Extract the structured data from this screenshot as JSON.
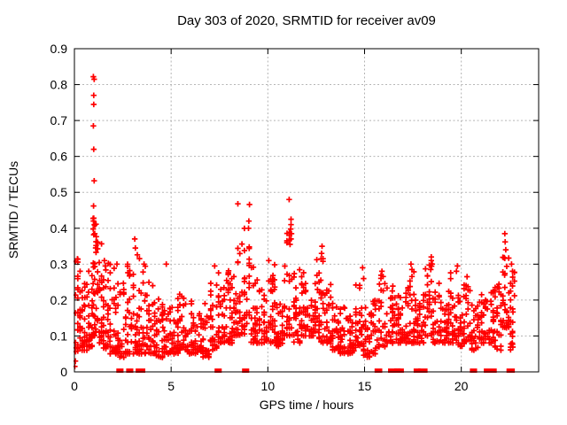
{
  "chart_data": {
    "type": "scatter",
    "title": "Day 303 of 2020, SRMTID for receiver av09",
    "xlabel": "GPS time / hours",
    "ylabel": "SRMTID / TECUs",
    "xlim": [
      0,
      24
    ],
    "ylim": [
      0,
      0.9
    ],
    "xticks": [
      0,
      5,
      10,
      15,
      20
    ],
    "yticks": [
      0,
      0.1,
      0.2,
      0.3,
      0.4,
      0.5,
      0.6,
      0.7,
      0.8,
      0.9
    ],
    "grid": {
      "show": true,
      "color": "#b5b5b5",
      "dash": "2,2.5"
    },
    "axis_color": "#000000",
    "background": "#ffffff",
    "legend": "none",
    "marker": {
      "shape": "plus",
      "color": "#ff0000",
      "size": 7,
      "stroke_width": 1.7
    },
    "generation": {
      "seed": 1303,
      "columns_per_hour": 22,
      "y_power": 1.8,
      "x_jitter": 0.04,
      "jitter_fraction": 0.3
    },
    "band_profile": [
      [
        0.0,
        0.35,
        0.04,
        0.32,
        38
      ],
      [
        0.35,
        0.7,
        0.06,
        0.26,
        30
      ],
      [
        0.7,
        0.95,
        0.07,
        0.3,
        28
      ],
      [
        0.95,
        1.15,
        0.1,
        0.43,
        34
      ],
      [
        1.15,
        1.45,
        0.08,
        0.38,
        30
      ],
      [
        1.45,
        1.8,
        0.06,
        0.31,
        32
      ],
      [
        1.8,
        2.2,
        0.05,
        0.3,
        32
      ],
      [
        2.2,
        2.6,
        0.04,
        0.26,
        28
      ],
      [
        2.6,
        3.0,
        0.05,
        0.3,
        30
      ],
      [
        3.0,
        3.4,
        0.05,
        0.34,
        32
      ],
      [
        3.4,
        3.8,
        0.05,
        0.3,
        30
      ],
      [
        3.8,
        4.2,
        0.05,
        0.25,
        30
      ],
      [
        4.2,
        4.6,
        0.04,
        0.22,
        28
      ],
      [
        4.6,
        5.0,
        0.05,
        0.21,
        28
      ],
      [
        5.0,
        5.4,
        0.05,
        0.22,
        30
      ],
      [
        5.4,
        5.8,
        0.06,
        0.22,
        30
      ],
      [
        5.8,
        6.2,
        0.05,
        0.2,
        30
      ],
      [
        6.2,
        6.6,
        0.05,
        0.18,
        28
      ],
      [
        6.6,
        7.0,
        0.04,
        0.2,
        28
      ],
      [
        7.0,
        7.4,
        0.06,
        0.25,
        30
      ],
      [
        7.4,
        7.8,
        0.08,
        0.28,
        32
      ],
      [
        7.8,
        8.2,
        0.08,
        0.3,
        32
      ],
      [
        8.2,
        8.6,
        0.1,
        0.35,
        34
      ],
      [
        8.6,
        9.1,
        0.1,
        0.4,
        36
      ],
      [
        9.1,
        9.5,
        0.08,
        0.3,
        32
      ],
      [
        9.5,
        10.0,
        0.08,
        0.25,
        32
      ],
      [
        10.0,
        10.4,
        0.08,
        0.3,
        32
      ],
      [
        10.4,
        10.8,
        0.07,
        0.22,
        30
      ],
      [
        10.8,
        11.3,
        0.1,
        0.4,
        34
      ],
      [
        11.3,
        11.7,
        0.08,
        0.3,
        32
      ],
      [
        11.7,
        12.1,
        0.1,
        0.28,
        32
      ],
      [
        12.1,
        12.5,
        0.1,
        0.25,
        32
      ],
      [
        12.5,
        12.9,
        0.08,
        0.33,
        32
      ],
      [
        12.9,
        13.3,
        0.08,
        0.25,
        30
      ],
      [
        13.3,
        13.7,
        0.06,
        0.2,
        30
      ],
      [
        13.7,
        14.1,
        0.05,
        0.18,
        28
      ],
      [
        14.1,
        14.5,
        0.05,
        0.16,
        28
      ],
      [
        14.5,
        14.9,
        0.06,
        0.25,
        28
      ],
      [
        14.9,
        15.3,
        0.04,
        0.18,
        26
      ],
      [
        15.3,
        15.7,
        0.05,
        0.2,
        26
      ],
      [
        15.7,
        16.1,
        0.07,
        0.28,
        30
      ],
      [
        16.1,
        16.5,
        0.08,
        0.25,
        28
      ],
      [
        16.5,
        16.9,
        0.08,
        0.22,
        28
      ],
      [
        16.9,
        17.3,
        0.08,
        0.25,
        28
      ],
      [
        17.3,
        17.7,
        0.08,
        0.29,
        28
      ],
      [
        17.7,
        18.1,
        0.08,
        0.22,
        28
      ],
      [
        18.1,
        18.5,
        0.1,
        0.31,
        30
      ],
      [
        18.5,
        18.9,
        0.08,
        0.25,
        28
      ],
      [
        18.9,
        19.3,
        0.08,
        0.2,
        28
      ],
      [
        19.3,
        19.7,
        0.08,
        0.28,
        30
      ],
      [
        19.7,
        20.1,
        0.07,
        0.22,
        28
      ],
      [
        20.1,
        20.5,
        0.08,
        0.26,
        28
      ],
      [
        20.5,
        20.9,
        0.06,
        0.2,
        26
      ],
      [
        20.9,
        21.3,
        0.08,
        0.22,
        28
      ],
      [
        21.3,
        21.7,
        0.08,
        0.23,
        28
      ],
      [
        21.7,
        22.1,
        0.06,
        0.25,
        28
      ],
      [
        22.1,
        22.5,
        0.12,
        0.36,
        32
      ],
      [
        22.5,
        22.8,
        0.06,
        0.28,
        24
      ]
    ],
    "outliers": [
      [
        0.02,
        0.015
      ],
      [
        0.05,
        0.03
      ],
      [
        0.98,
        0.822
      ],
      [
        1.02,
        0.815
      ],
      [
        1.0,
        0.77
      ],
      [
        1.0,
        0.745
      ],
      [
        0.98,
        0.685
      ],
      [
        1.0,
        0.62
      ],
      [
        1.02,
        0.532
      ],
      [
        0.99,
        0.462
      ],
      [
        1.0,
        0.428
      ],
      [
        1.03,
        0.41
      ],
      [
        0.97,
        0.398
      ],
      [
        1.0,
        0.382
      ],
      [
        1.55,
        0.31
      ],
      [
        1.6,
        0.295
      ],
      [
        2.2,
        0.3
      ],
      [
        3.12,
        0.37
      ],
      [
        3.15,
        0.345
      ],
      [
        3.6,
        0.3
      ],
      [
        4.75,
        0.3
      ],
      [
        7.25,
        0.295
      ],
      [
        8.45,
        0.468
      ],
      [
        9.05,
        0.466
      ],
      [
        9.02,
        0.42
      ],
      [
        9.0,
        0.4
      ],
      [
        10.05,
        0.31
      ],
      [
        11.1,
        0.48
      ],
      [
        11.2,
        0.425
      ],
      [
        11.2,
        0.41
      ],
      [
        11.18,
        0.398
      ],
      [
        11.22,
        0.385
      ],
      [
        11.2,
        0.37
      ],
      [
        11.15,
        0.355
      ],
      [
        12.8,
        0.35
      ],
      [
        12.78,
        0.33
      ],
      [
        14.9,
        0.29
      ],
      [
        14.95,
        0.26
      ],
      [
        15.9,
        0.28
      ],
      [
        17.4,
        0.3
      ],
      [
        17.45,
        0.285
      ],
      [
        18.45,
        0.32
      ],
      [
        18.5,
        0.3
      ],
      [
        18.42,
        0.285
      ],
      [
        19.8,
        0.295
      ],
      [
        19.75,
        0.28
      ],
      [
        20.3,
        0.265
      ],
      [
        22.25,
        0.385
      ],
      [
        22.27,
        0.362
      ],
      [
        22.3,
        0.34
      ],
      [
        22.22,
        0.318
      ],
      [
        22.6,
        0.3
      ],
      [
        22.65,
        0.28
      ]
    ],
    "zero_runs": [
      [
        2.28,
        2.42
      ],
      [
        2.79,
        2.93
      ],
      [
        3.28,
        3.55
      ],
      [
        7.36,
        7.5
      ],
      [
        8.78,
        8.92
      ],
      [
        15.63,
        15.8
      ],
      [
        16.33,
        16.58
      ],
      [
        16.65,
        16.75
      ],
      [
        16.82,
        16.92
      ],
      [
        17.65,
        17.78
      ],
      [
        17.88,
        18.14
      ],
      [
        20.56,
        20.7
      ],
      [
        21.28,
        21.72
      ],
      [
        22.45,
        22.65
      ]
    ]
  }
}
